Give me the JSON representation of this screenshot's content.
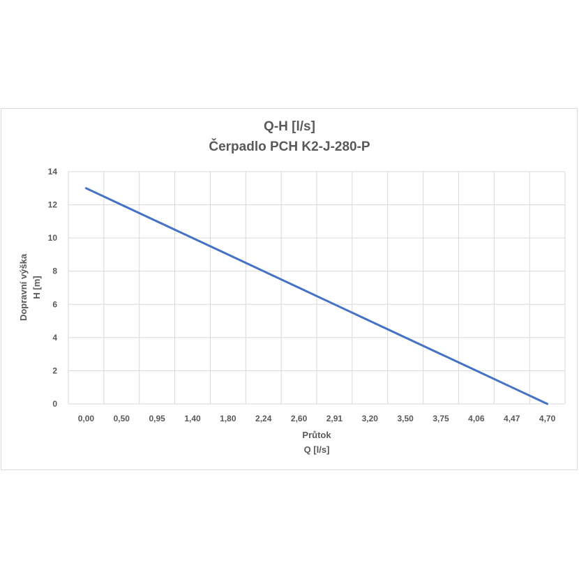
{
  "chart_data": {
    "type": "line",
    "title": "Q-H  [l/s]",
    "subtitle": "Čerpadlo PCH K2-J-280-P",
    "xlabel": [
      "Průtok",
      "Q [l/s]"
    ],
    "ylabel": [
      "Dopravní výška",
      "H [m]"
    ],
    "categories": [
      "0,00",
      "0,50",
      "0,95",
      "1,40",
      "1,80",
      "2,24",
      "2,60",
      "2,91",
      "3,20",
      "3,50",
      "3,75",
      "4,06",
      "4,47",
      "4,70"
    ],
    "series": [
      {
        "color": "#4472c4",
        "values": [
          13,
          12,
          11,
          10,
          9,
          8,
          7,
          6,
          5,
          4,
          3,
          2,
          1,
          0
        ]
      }
    ],
    "ylim": [
      0,
      14
    ],
    "yticks": [
      "0",
      "2",
      "4",
      "6",
      "8",
      "10",
      "12",
      "14"
    ],
    "grid": true,
    "legend": "none"
  },
  "colors": {
    "line": "#4472c4",
    "grid": "#d9d9d9",
    "text": "#595959"
  }
}
